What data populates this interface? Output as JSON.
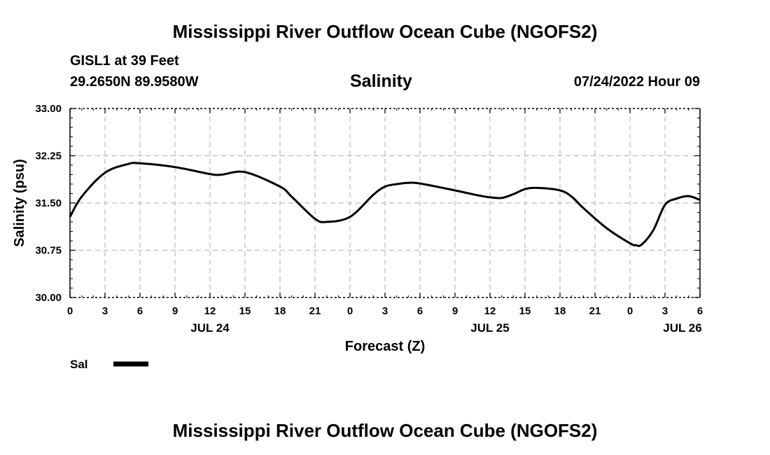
{
  "header": {
    "title": "Mississippi River Outflow Ocean Cube (NGOFS2)",
    "station": "GISL1 at 39 Feet",
    "coords": "29.2650N  89.9580W",
    "variable": "Salinity",
    "datetime": "07/24/2022 Hour 09"
  },
  "footer": {
    "title": "Mississippi River Outflow Ocean Cube (NGOFS2)"
  },
  "legend": {
    "label": "Sal"
  },
  "colors": {
    "line": "#000000",
    "grid": "#bbbbbb"
  },
  "chart_data": {
    "type": "line",
    "title": "Salinity",
    "xlabel": "Forecast (Z)",
    "ylabel": "Salinity (psu)",
    "xlim": [
      0,
      54
    ],
    "ylim": [
      30.0,
      33.0
    ],
    "grid": true,
    "yticks": [
      30.0,
      30.75,
      31.5,
      32.25,
      33.0
    ],
    "ytick_labels": [
      "30.00",
      "30.75",
      "31.50",
      "32.25",
      "33.00"
    ],
    "xticks": [
      0,
      3,
      6,
      9,
      12,
      15,
      18,
      21,
      24,
      27,
      30,
      33,
      36,
      39,
      42,
      45,
      48,
      51,
      54
    ],
    "xtick_labels": [
      "0",
      "3",
      "6",
      "9",
      "12",
      "15",
      "18",
      "21",
      "0",
      "3",
      "6",
      "9",
      "12",
      "15",
      "18",
      "21",
      "0",
      "3",
      "6"
    ],
    "day_labels": [
      {
        "x": 12,
        "label": "JUL 24"
      },
      {
        "x": 36,
        "label": "JUL 25"
      },
      {
        "x": 52.5,
        "label": "JUL 26"
      }
    ],
    "series": [
      {
        "name": "Sal",
        "x": [
          0,
          1,
          3,
          5,
          6,
          9,
          12,
          13,
          15,
          18,
          19,
          21,
          22,
          24,
          26,
          27,
          28,
          29,
          30,
          33,
          35,
          36,
          37,
          38,
          39,
          40,
          42,
          43,
          44,
          46,
          48,
          48.5,
          49,
          50,
          51,
          52,
          53,
          54
        ],
        "y": [
          31.28,
          31.6,
          31.98,
          32.12,
          32.13,
          32.07,
          31.96,
          31.95,
          31.99,
          31.76,
          31.6,
          31.25,
          31.2,
          31.28,
          31.63,
          31.76,
          31.8,
          31.82,
          31.81,
          31.7,
          31.62,
          31.59,
          31.58,
          31.64,
          31.72,
          31.74,
          31.7,
          31.6,
          31.42,
          31.1,
          30.86,
          30.83,
          30.84,
          31.07,
          31.47,
          31.57,
          31.61,
          31.55
        ]
      }
    ]
  }
}
